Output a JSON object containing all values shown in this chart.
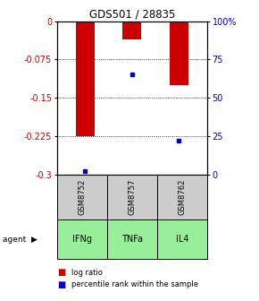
{
  "title": "GDS501 / 28835",
  "samples": [
    "GSM8752",
    "GSM8757",
    "GSM8762"
  ],
  "agents": [
    "IFNg",
    "TNFa",
    "IL4"
  ],
  "log_ratios": [
    -0.225,
    -0.035,
    -0.125
  ],
  "percentile_ranks": [
    2.0,
    65.0,
    22.0
  ],
  "ylim_left": [
    -0.3,
    0.0
  ],
  "ylim_right": [
    0.0,
    100.0
  ],
  "yticks_left": [
    0,
    -0.075,
    -0.15,
    -0.225,
    -0.3
  ],
  "yticks_right": [
    0,
    25,
    50,
    75,
    100
  ],
  "bar_color": "#cc0000",
  "percentile_color": "#0000cc",
  "grid_color": "#444444",
  "sample_box_color": "#cccccc",
  "agent_box_color": "#99ee99",
  "legend_log_ratio": "log ratio",
  "legend_percentile": "percentile rank within the sample",
  "bar_width": 0.4
}
